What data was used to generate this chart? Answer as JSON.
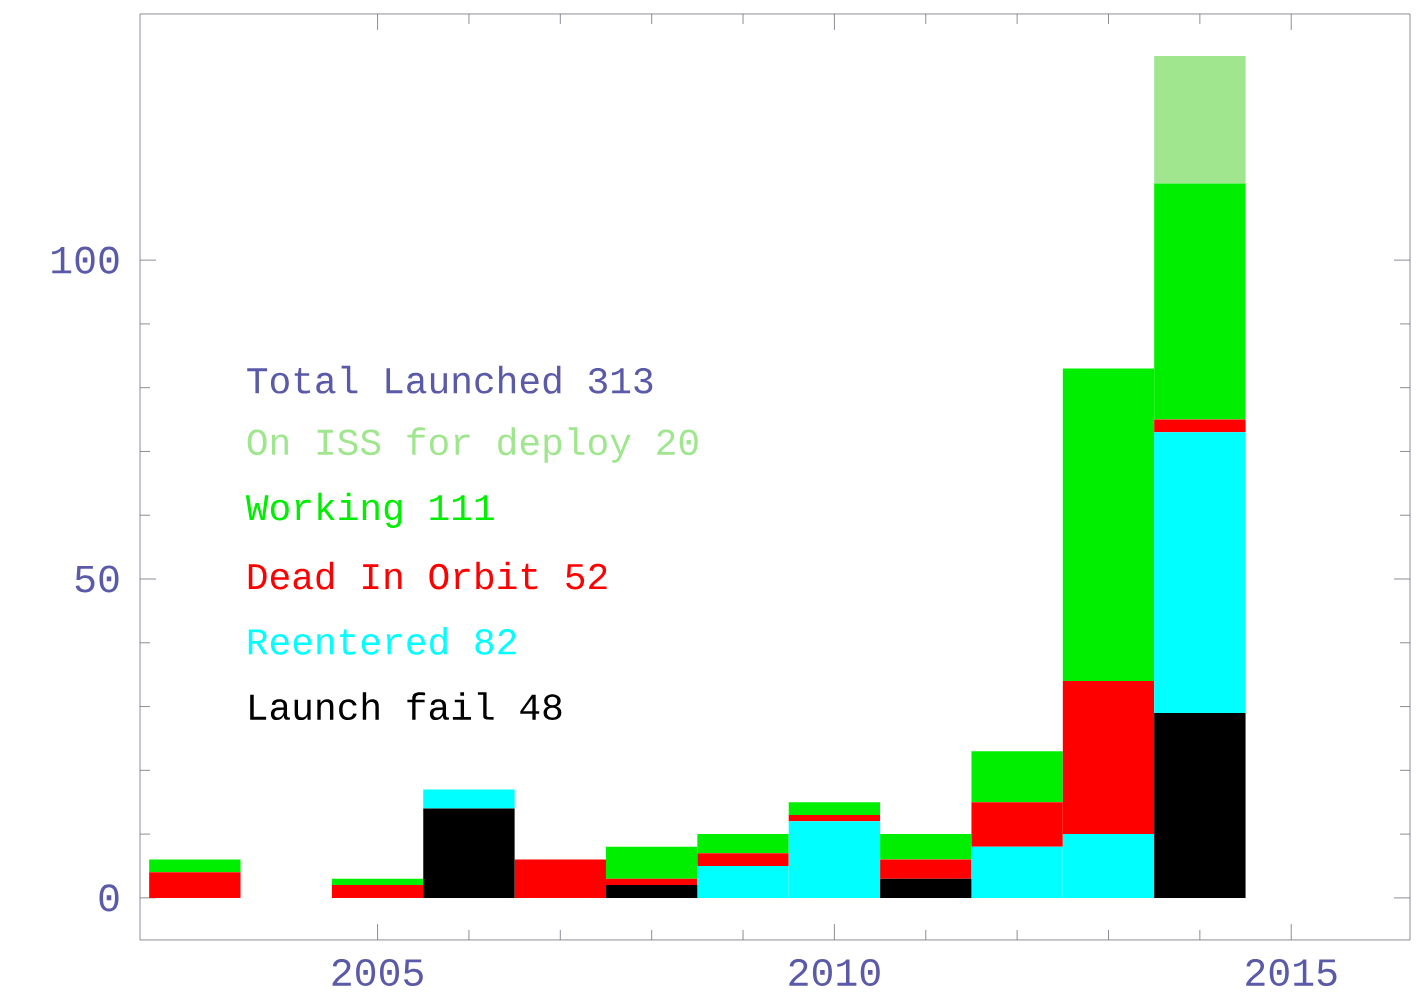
{
  "chart_data": {
    "type": "bar",
    "stacked": true,
    "legend_title": "Total Launched 313",
    "legend": "left",
    "x": [
      2003,
      2004,
      2005,
      2006,
      2007,
      2008,
      2009,
      2010,
      2011,
      2012,
      2013,
      2014
    ],
    "series": [
      {
        "name": "Launch fail 48",
        "color": "#000000",
        "values": [
          0,
          0,
          0,
          14,
          0,
          2,
          0,
          0,
          3,
          0,
          0,
          29
        ]
      },
      {
        "name": "Reentered 82",
        "color": "#00ffff",
        "values": [
          0,
          0,
          0,
          3,
          0,
          0,
          5,
          12,
          0,
          8,
          10,
          44
        ]
      },
      {
        "name": "Dead In Orbit 52",
        "color": "#ff0000",
        "values": [
          4,
          0,
          2,
          0,
          6,
          1,
          2,
          1,
          3,
          7,
          24,
          2
        ]
      },
      {
        "name": "Working 111",
        "color": "#00ee00",
        "values": [
          2,
          0,
          1,
          0,
          0,
          5,
          3,
          2,
          4,
          8,
          49,
          37
        ]
      },
      {
        "name": "On ISS for deploy 20",
        "color": "#9fe68f",
        "values": [
          0,
          0,
          0,
          0,
          0,
          0,
          0,
          0,
          0,
          0,
          0,
          20
        ]
      }
    ],
    "xlim": [
      2002.4,
      2016.3
    ],
    "ylim": [
      -6.6,
      138.6
    ],
    "xticks": [
      2005,
      2010,
      2015
    ],
    "yticks": [
      0,
      50,
      100
    ]
  }
}
